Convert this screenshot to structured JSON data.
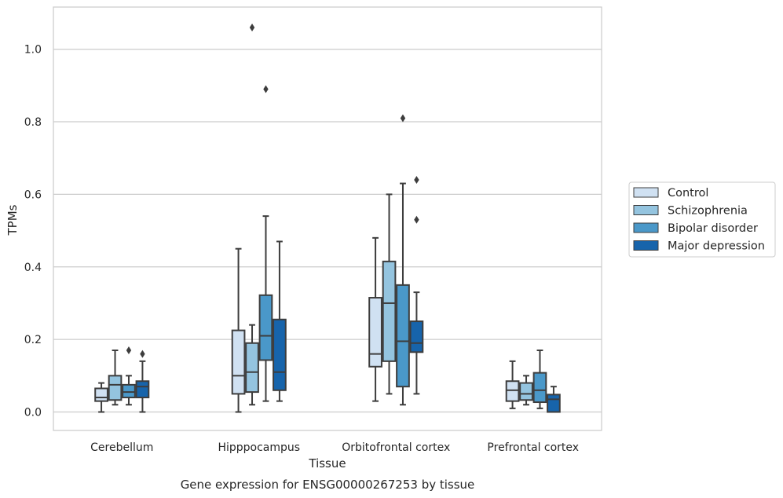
{
  "chart_data": {
    "type": "box",
    "title": "",
    "caption": "Gene expression for ENSG00000267253 by tissue",
    "xlabel": "Tissue",
    "ylabel": "TPMs",
    "ylim": [
      -0.05,
      1.115
    ],
    "yticks": [
      0.0,
      0.2,
      0.4,
      0.6,
      0.8,
      1.0
    ],
    "ytick_labels": [
      "0.0",
      "0.2",
      "0.4",
      "0.6",
      "0.8",
      "1.0"
    ],
    "grid": "horizontal",
    "legend_position": "right",
    "categories": [
      "Cerebellum",
      "Hipppocampus",
      "Orbitofrontal cortex",
      "Prefrontal cortex"
    ],
    "series": [
      {
        "name": "Control",
        "color": "#d0e1f2",
        "boxes": [
          {
            "whislo": 0.0,
            "q1": 0.03,
            "med": 0.04,
            "q3": 0.065,
            "whishi": 0.08,
            "fliers": []
          },
          {
            "whislo": 0.0,
            "q1": 0.05,
            "med": 0.1,
            "q3": 0.225,
            "whishi": 0.45,
            "fliers": []
          },
          {
            "whislo": 0.03,
            "q1": 0.125,
            "med": 0.16,
            "q3": 0.315,
            "whishi": 0.48,
            "fliers": []
          },
          {
            "whislo": 0.01,
            "q1": 0.03,
            "med": 0.06,
            "q3": 0.085,
            "whishi": 0.14,
            "fliers": []
          }
        ]
      },
      {
        "name": "Schizophrenia",
        "color": "#94c4df",
        "boxes": [
          {
            "whislo": 0.02,
            "q1": 0.033,
            "med": 0.075,
            "q3": 0.1,
            "whishi": 0.17,
            "fliers": []
          },
          {
            "whislo": 0.02,
            "q1": 0.055,
            "med": 0.11,
            "q3": 0.19,
            "whishi": 0.24,
            "fliers": [
              1.06
            ]
          },
          {
            "whislo": 0.05,
            "q1": 0.14,
            "med": 0.3,
            "q3": 0.415,
            "whishi": 0.6,
            "fliers": []
          },
          {
            "whislo": 0.02,
            "q1": 0.033,
            "med": 0.05,
            "q3": 0.08,
            "whishi": 0.1,
            "fliers": []
          }
        ]
      },
      {
        "name": "Bipolar disorder",
        "color": "#4a98c9",
        "boxes": [
          {
            "whislo": 0.02,
            "q1": 0.04,
            "med": 0.055,
            "q3": 0.075,
            "whishi": 0.1,
            "fliers": [
              0.17
            ]
          },
          {
            "whislo": 0.03,
            "q1": 0.143,
            "med": 0.21,
            "q3": 0.322,
            "whishi": 0.54,
            "fliers": [
              0.89
            ]
          },
          {
            "whislo": 0.02,
            "q1": 0.07,
            "med": 0.195,
            "q3": 0.35,
            "whishi": 0.63,
            "fliers": [
              0.81
            ]
          },
          {
            "whislo": 0.01,
            "q1": 0.027,
            "med": 0.06,
            "q3": 0.108,
            "whishi": 0.17,
            "fliers": []
          }
        ]
      },
      {
        "name": "Major depression",
        "color": "#1764ab",
        "boxes": [
          {
            "whislo": 0.0,
            "q1": 0.04,
            "med": 0.07,
            "q3": 0.085,
            "whishi": 0.14,
            "fliers": [
              0.16
            ]
          },
          {
            "whislo": 0.03,
            "q1": 0.06,
            "med": 0.11,
            "q3": 0.255,
            "whishi": 0.47,
            "fliers": []
          },
          {
            "whislo": 0.05,
            "q1": 0.165,
            "med": 0.19,
            "q3": 0.25,
            "whishi": 0.33,
            "fliers": [
              0.64,
              0.53
            ]
          },
          {
            "whislo": 0.0,
            "q1": 0.0,
            "med": 0.035,
            "q3": 0.048,
            "whishi": 0.07,
            "fliers": []
          }
        ]
      }
    ]
  }
}
